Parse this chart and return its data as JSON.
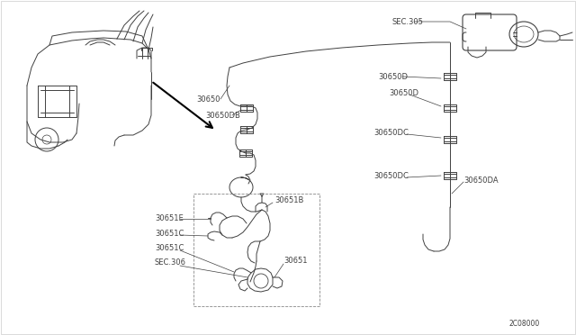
{
  "bg_color": "#ffffff",
  "border_color": "#cccccc",
  "line_color": "#404040",
  "part_number": "2C08000",
  "labels": {
    "SEC305": "SEC.305",
    "30650": "30650",
    "30650D_a": "30650D",
    "30650D_b": "30650D",
    "30650DB": "30650DB",
    "30650DC_a": "30650DC",
    "30650DC_b": "30650DC",
    "30650DA": "30650DA",
    "30651B": "30651B",
    "30651E": "30651E",
    "30651C_a": "30651C",
    "30651C_b": "30651C",
    "30651": "30651",
    "SEC306": "SEC.306"
  },
  "font_size": 6.0
}
